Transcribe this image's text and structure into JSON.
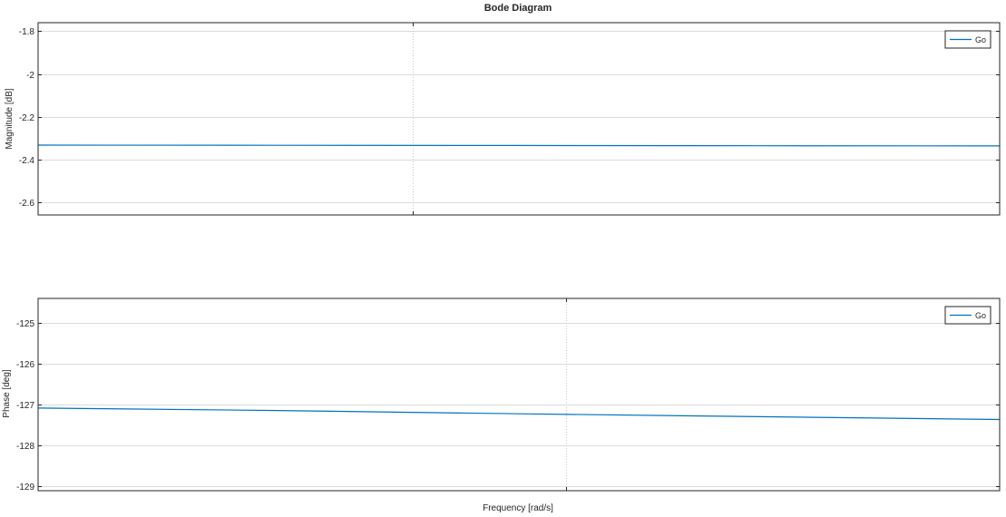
{
  "chart_data": [
    {
      "type": "line",
      "title": "Bode Diagram",
      "ylabel": "Magnitude [dB]",
      "xlabel": "",
      "ylim": [
        -2.66,
        -1.76
      ],
      "yticks": [
        -1.8,
        -2,
        -2.2,
        -2.4,
        -2.6
      ],
      "ytick_labels": [
        "-1.8",
        "-2",
        "-2.2",
        "-2.4",
        "-2.6"
      ],
      "grid": true,
      "legend": "top-right",
      "series": [
        {
          "name": "Go",
          "color": "#0072bd",
          "x": [
            0,
            0.25,
            0.5,
            0.75,
            1
          ],
          "y": [
            -2.333,
            -2.334,
            -2.335,
            -2.336,
            -2.337
          ]
        }
      ]
    },
    {
      "type": "line",
      "title": "",
      "ylabel": "Phase [deg]",
      "xlabel": "Frequency [rad/s]",
      "ylim": [
        -129.1,
        -124.4
      ],
      "yticks": [
        -125,
        -126,
        -127,
        -128,
        -129
      ],
      "ytick_labels": [
        "-125",
        "-126",
        "-127",
        "-128",
        "-129"
      ],
      "grid": true,
      "legend": "top-right",
      "series": [
        {
          "name": "Go",
          "color": "#0072bd",
          "x": [
            0,
            0.25,
            0.5,
            0.75,
            1
          ],
          "y": [
            -127.08,
            -127.14,
            -127.22,
            -127.29,
            -127.36
          ]
        }
      ]
    }
  ]
}
